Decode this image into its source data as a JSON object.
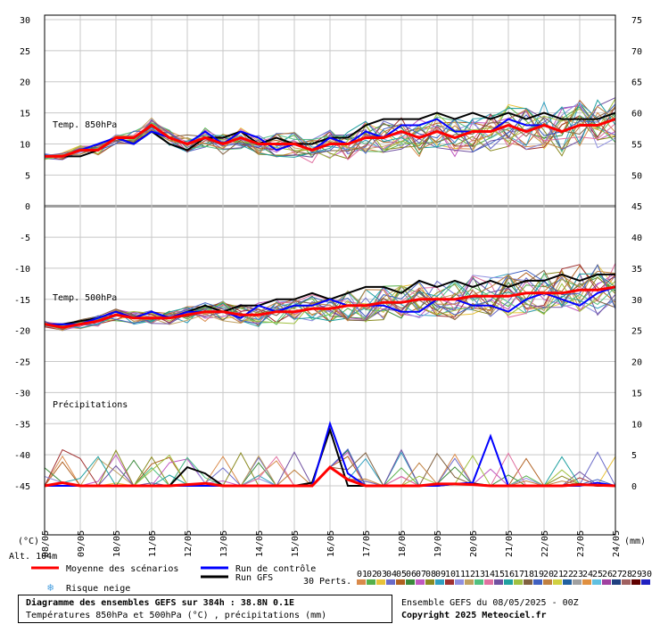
{
  "chart_data": {
    "type": "line",
    "left_axis_unit": "(°C)",
    "right_axis_unit": "(mm)",
    "left_ticks": [
      30,
      25,
      20,
      15,
      10,
      5,
      0,
      -5,
      -10,
      -15,
      -20,
      -25,
      -30,
      -35,
      -40,
      -45
    ],
    "right_ticks_temp": [
      75,
      70,
      65,
      60,
      55,
      50,
      45,
      40,
      35,
      30,
      25,
      20,
      15,
      10,
      5,
      0
    ],
    "x_ticks": [
      "09/05",
      "10/05",
      "11/05",
      "12/05",
      "13/05",
      "14/05",
      "15/05",
      "16/05",
      "17/05",
      "18/05",
      "19/05",
      "20/05",
      "21/05",
      "22/05",
      "23/05",
      "24/05"
    ],
    "x_start_label": "08/05",
    "panel_labels": {
      "t850": "Temp. 850hPa",
      "t500": "Temp. 500hPa",
      "precip": "Précipitations"
    },
    "altitude": "Alt. 104m",
    "grid": true,
    "series": [
      {
        "name": "Moyenne des scénarios",
        "color": "#ff0000",
        "panel": "t850",
        "values": [
          8,
          8,
          9,
          9,
          11,
          11,
          13,
          11,
          10,
          11,
          10,
          11,
          10,
          10,
          10,
          9,
          10,
          10,
          11,
          11,
          12,
          11,
          12,
          11,
          12,
          12,
          13,
          12,
          13,
          12,
          13,
          13,
          14
        ]
      },
      {
        "name": "Run de contrôle",
        "color": "#0000ff",
        "panel": "t850",
        "values": [
          8,
          8,
          9,
          10,
          11,
          10,
          12,
          11,
          10,
          12,
          10,
          12,
          11,
          9,
          10,
          9,
          11,
          10,
          12,
          11,
          13,
          13,
          14,
          12,
          12,
          12,
          14,
          13,
          13,
          12,
          13,
          13,
          14
        ]
      },
      {
        "name": "Run GFS",
        "color": "#000000",
        "panel": "t850",
        "values": [
          8,
          8,
          8,
          9,
          11,
          10,
          12,
          10,
          9,
          11,
          11,
          12,
          10,
          11,
          10,
          10,
          11,
          11,
          13,
          14,
          14,
          14,
          15,
          14,
          15,
          14,
          15,
          14,
          15,
          14,
          14,
          14,
          15
        ]
      },
      {
        "name": "Moyenne des scénarios",
        "color": "#ff0000",
        "panel": "t500",
        "values": [
          -19,
          -19.5,
          -19,
          -18.5,
          -17.5,
          -18,
          -18,
          -18,
          -17.5,
          -17,
          -17,
          -17.5,
          -17.5,
          -17,
          -17,
          -16.5,
          -16.5,
          -16,
          -16,
          -15.5,
          -15.5,
          -15,
          -15,
          -15,
          -14.5,
          -14.5,
          -14.5,
          -14,
          -14,
          -14,
          -13.5,
          -13.5,
          -13
        ]
      },
      {
        "name": "Run de contrôle",
        "color": "#0000ff",
        "panel": "t500",
        "values": [
          -19,
          -19,
          -19,
          -18,
          -17,
          -18,
          -17,
          -18,
          -17,
          -17,
          -17,
          -18,
          -16,
          -17,
          -16,
          -16,
          -15,
          -16,
          -16,
          -16,
          -17,
          -17,
          -15,
          -15,
          -16,
          -16,
          -17,
          -15,
          -14,
          -15,
          -16,
          -14,
          -13
        ]
      },
      {
        "name": "Run GFS",
        "color": "#000000",
        "panel": "t500",
        "values": [
          -19,
          -19,
          -18.5,
          -18,
          -17,
          -18,
          -17,
          -18,
          -17,
          -16,
          -17,
          -16,
          -16,
          -15,
          -15,
          -14,
          -15,
          -14,
          -13,
          -13,
          -14,
          -12,
          -13,
          -12,
          -13,
          -12,
          -13,
          -12,
          -12,
          -11,
          -12,
          -11,
          -11
        ]
      },
      {
        "name": "Moyenne des scénarios",
        "color": "#ff0000",
        "panel": "precip",
        "values": [
          0,
          0.5,
          0,
          0,
          0,
          0,
          0,
          0,
          0.2,
          0.4,
          0,
          0,
          0,
          0,
          0,
          0,
          3,
          1,
          0,
          0,
          0,
          0,
          0.3,
          0.3,
          0.2,
          0,
          0,
          0,
          0,
          0,
          0.2,
          0.1,
          0
        ]
      },
      {
        "name": "Run de contrôle",
        "color": "#0000ff",
        "panel": "precip",
        "values": [
          0,
          0,
          0,
          0,
          0,
          0,
          0,
          0,
          0,
          0,
          0,
          0,
          0,
          0,
          0,
          0,
          10,
          2,
          0,
          0,
          0,
          0,
          0,
          0.3,
          0.5,
          8,
          0,
          0,
          0,
          0,
          0,
          0.5,
          0
        ]
      },
      {
        "name": "Run GFS",
        "color": "#000000",
        "panel": "precip",
        "values": [
          0,
          0.5,
          0,
          0,
          0,
          0,
          0,
          0,
          3,
          2,
          0,
          0,
          0,
          0,
          0,
          0.5,
          9,
          0,
          0,
          0,
          0,
          0,
          0,
          0.3,
          0.4,
          0,
          0,
          0,
          0,
          0,
          0.3,
          0,
          0
        ]
      }
    ],
    "perturbation_colors": [
      "#d98a4a",
      "#55b04a",
      "#e8c23a",
      "#6a6ac8",
      "#b06020",
      "#3a8a3a",
      "#c058c0",
      "#8a8a20",
      "#30a0c0",
      "#a03030",
      "#9090e0",
      "#c0a060",
      "#50c080",
      "#e070a0",
      "#7050a0",
      "#20a0a0",
      "#a0c040",
      "#806040",
      "#4060c0",
      "#c08040"
    ]
  },
  "legend": {
    "mean": "Moyenne des scénarios",
    "control": "Run de contrôle",
    "gfs": "Run GFS",
    "snow": "Risque neige",
    "perts": "30 Perts.",
    "pert_numbers": [
      "01",
      "02",
      "03",
      "04",
      "05",
      "06",
      "07",
      "08",
      "09",
      "10",
      "11",
      "12",
      "13",
      "14",
      "15",
      "16",
      "17",
      "18",
      "19",
      "20",
      "21",
      "22",
      "23",
      "24",
      "25",
      "26",
      "27",
      "28",
      "29",
      "30"
    ],
    "pert_colors": [
      "#d98a4a",
      "#55b04a",
      "#e8c23a",
      "#6a6ac8",
      "#b06020",
      "#3a8a3a",
      "#c058c0",
      "#8a8a20",
      "#30a0c0",
      "#a03030",
      "#9090e0",
      "#c0a060",
      "#50c080",
      "#e070a0",
      "#7050a0",
      "#20a0a0",
      "#a0c040",
      "#806040",
      "#4060c0",
      "#c08040",
      "#d0d040",
      "#2060a0",
      "#a0a0a0",
      "#e09040",
      "#60c0e0",
      "#a040a0",
      "#204080",
      "#a06060",
      "#600000",
      "#2020c0"
    ]
  },
  "footer": {
    "title": "Diagramme des ensembles GEFS sur 384h : 38.8N 0.1E",
    "subtitle": "Températures 850hPa et 500hPa (°C) , précipitations (mm)",
    "run": "Ensemble GEFS du 08/05/2025 - 00Z",
    "copyright": "Copyright 2025 Meteociel.fr"
  }
}
